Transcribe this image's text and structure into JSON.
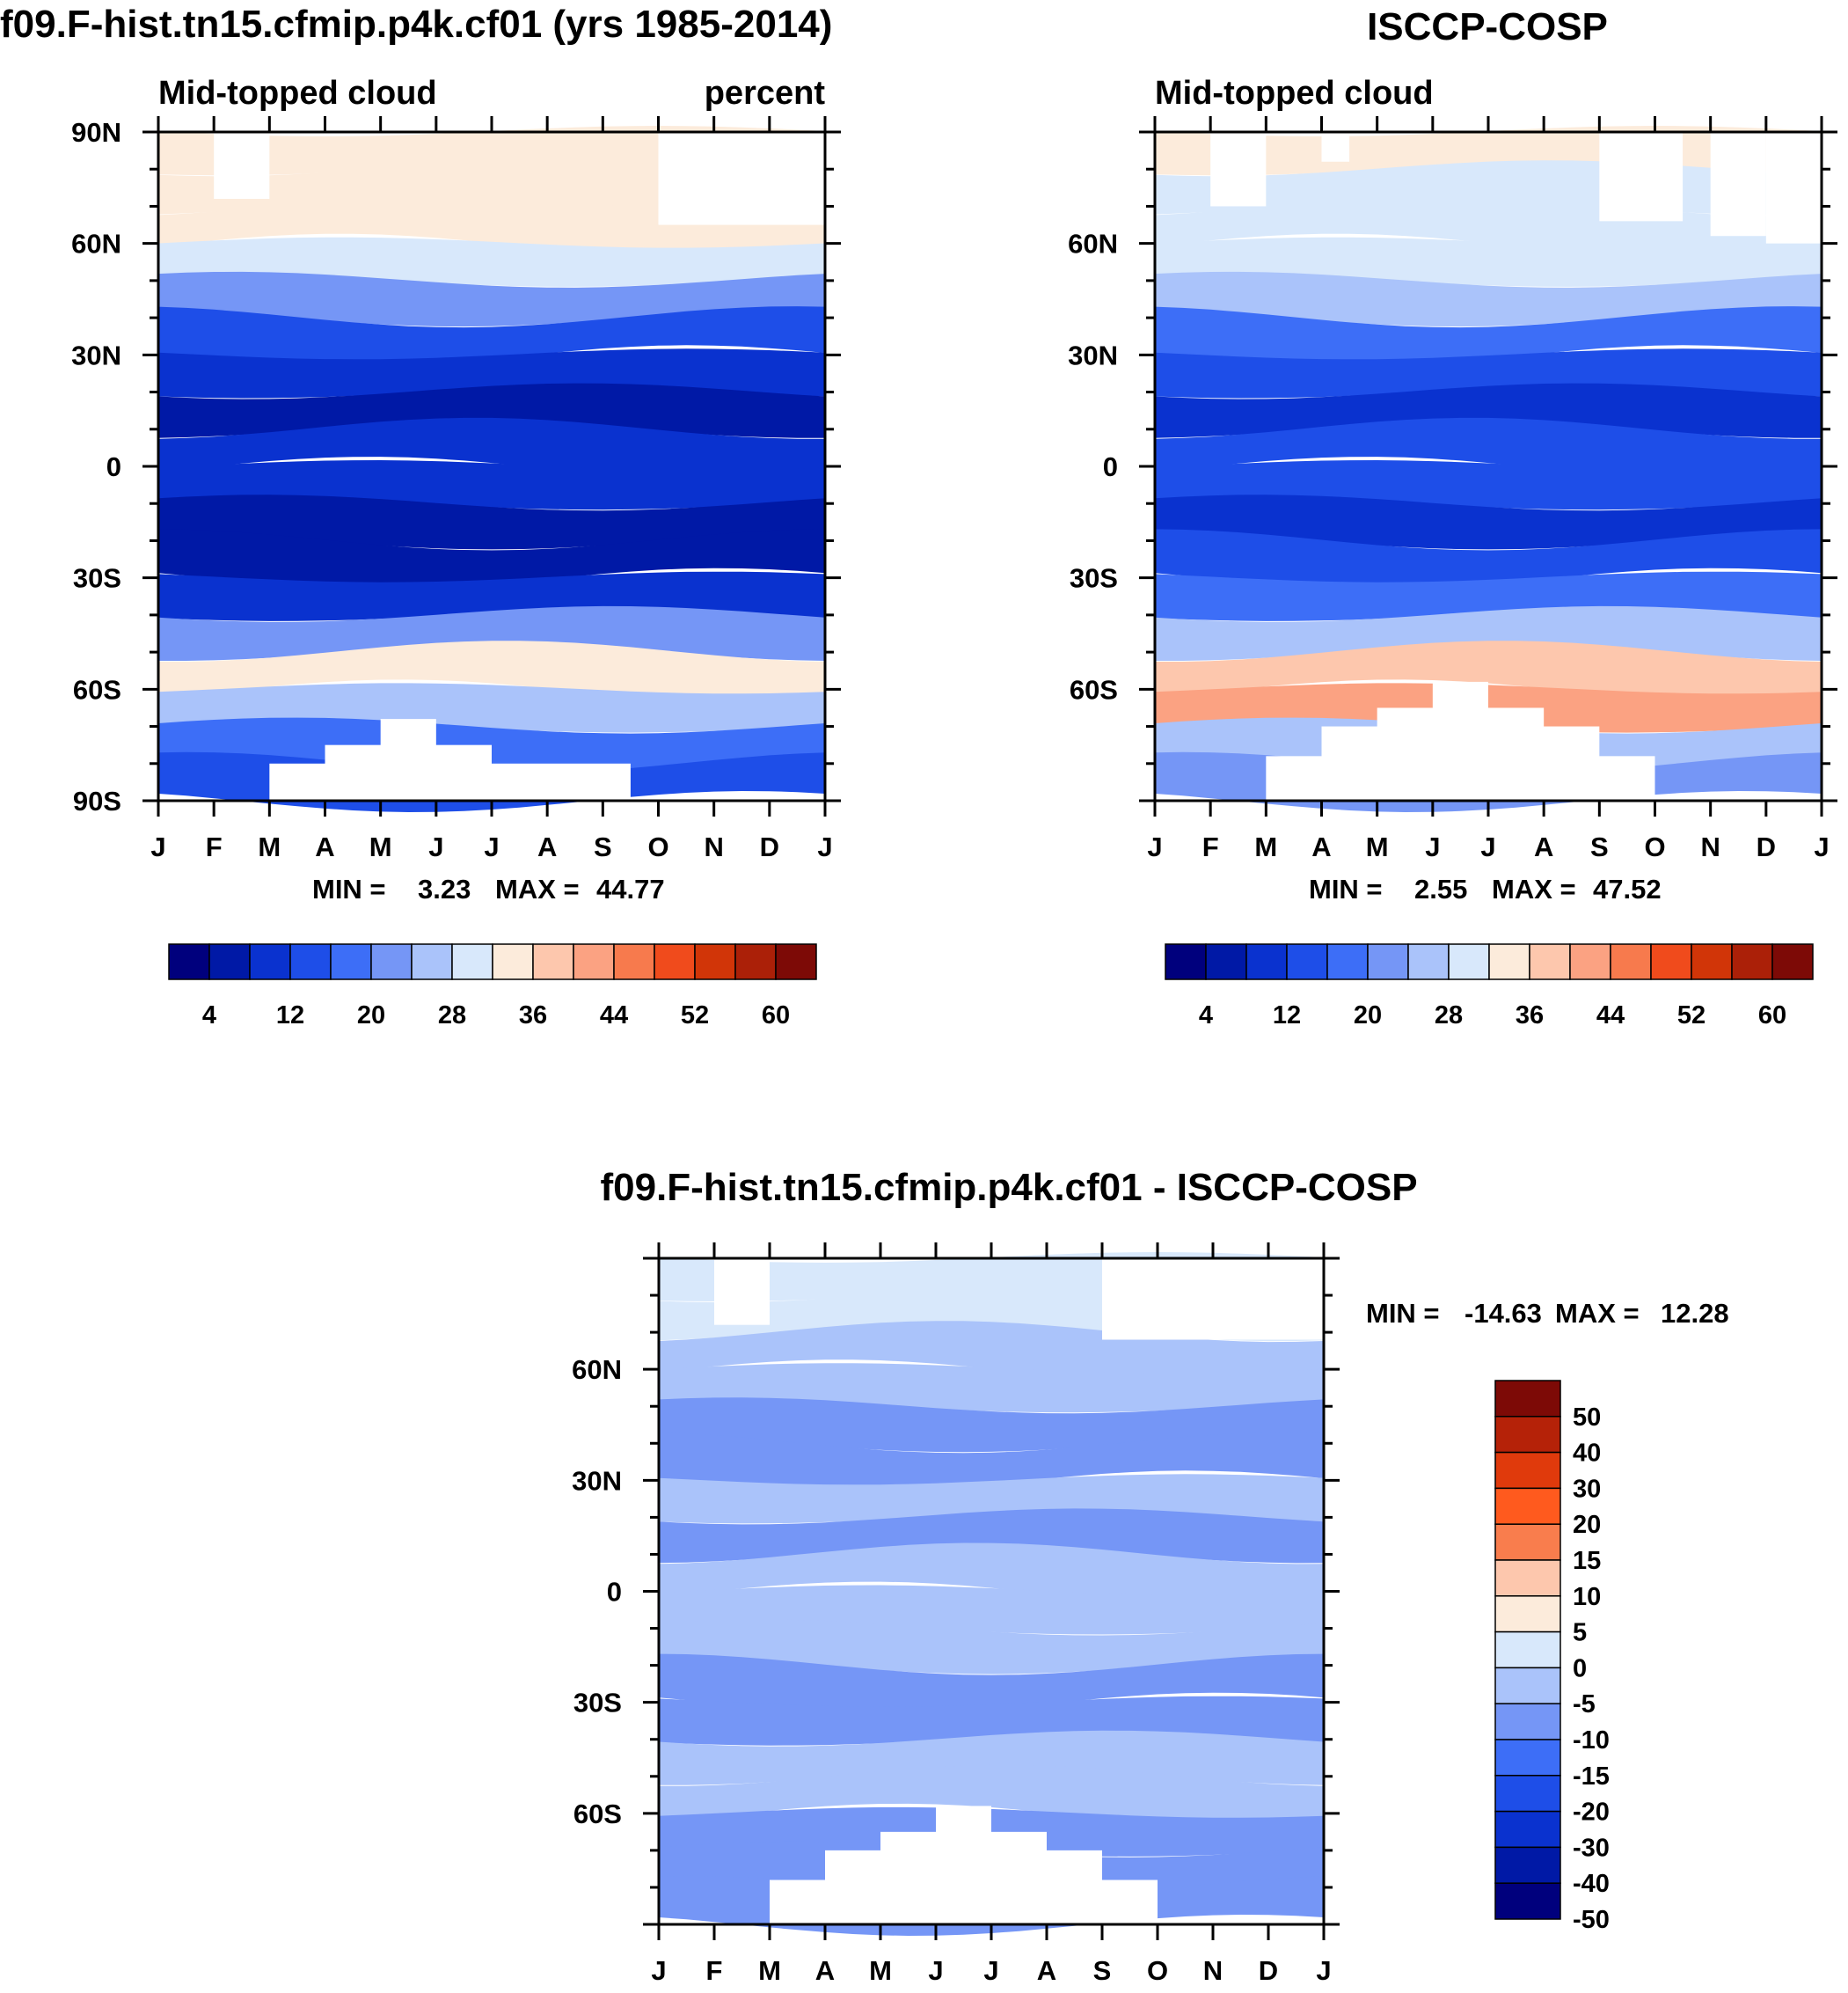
{
  "chart_data": [
    {
      "id": "model",
      "type": "heatmap",
      "title": "f09.F-hist.tn15.cfmip.p4k.cf01 (yrs 1985-2014)",
      "left_string": "Mid-topped cloud",
      "right_string": "percent",
      "xlabel": "",
      "ylabel": "",
      "x_ticks": [
        "J",
        "F",
        "M",
        "A",
        "M",
        "J",
        "J",
        "A",
        "S",
        "O",
        "N",
        "D",
        "J"
      ],
      "y_ticks": [
        "90N",
        "60N",
        "30N",
        "0",
        "30S",
        "60S",
        "90S"
      ],
      "y_tick_values": [
        90,
        60,
        30,
        0,
        -30,
        -60,
        -90
      ],
      "ylim": [
        -90,
        90
      ],
      "min_label": "MIN =",
      "min_value": "3.23",
      "max_label": "MAX =",
      "max_value": "44.77",
      "colorbar_labels": [
        "4",
        "12",
        "20",
        "28",
        "36",
        "44",
        "52",
        "60"
      ],
      "field_by_latitude": [
        {
          "lat": 85,
          "value": 33
        },
        {
          "lat": 75,
          "value": 33
        },
        {
          "lat": 65,
          "value": 34
        },
        {
          "lat": 55,
          "value": 30
        },
        {
          "lat": 45,
          "value": 22
        },
        {
          "lat": 35,
          "value": 14
        },
        {
          "lat": 25,
          "value": 8
        },
        {
          "lat": 15,
          "value": 6
        },
        {
          "lat": 5,
          "value": 9
        },
        {
          "lat": -5,
          "value": 10
        },
        {
          "lat": -15,
          "value": 6
        },
        {
          "lat": -25,
          "value": 6
        },
        {
          "lat": -35,
          "value": 10
        },
        {
          "lat": -45,
          "value": 22
        },
        {
          "lat": -55,
          "value": 32
        },
        {
          "lat": -65,
          "value": 26
        },
        {
          "lat": -75,
          "value": 18
        },
        {
          "lat": -85,
          "value": 14
        }
      ]
    },
    {
      "id": "obs",
      "type": "heatmap",
      "title": "ISCCP-COSP",
      "left_string": "Mid-topped cloud",
      "xlabel": "",
      "ylabel": "",
      "x_ticks": [
        "J",
        "F",
        "M",
        "A",
        "M",
        "J",
        "J",
        "A",
        "S",
        "O",
        "N",
        "D",
        "J"
      ],
      "y_ticks": [
        "60N",
        "30N",
        "0",
        "30S",
        "60S"
      ],
      "y_tick_values": [
        60,
        30,
        0,
        -30,
        -60
      ],
      "ylim": [
        -90,
        90
      ],
      "min_label": "MIN =",
      "min_value": "2.55",
      "max_label": "MAX =",
      "max_value": "47.52",
      "colorbar_labels": [
        "4",
        "12",
        "20",
        "28",
        "36",
        "44",
        "52",
        "60"
      ],
      "field_by_latitude": [
        {
          "lat": 85,
          "value": 32
        },
        {
          "lat": 75,
          "value": 28
        },
        {
          "lat": 65,
          "value": 30
        },
        {
          "lat": 55,
          "value": 30
        },
        {
          "lat": 45,
          "value": 24
        },
        {
          "lat": 35,
          "value": 18
        },
        {
          "lat": 25,
          "value": 12
        },
        {
          "lat": 15,
          "value": 10
        },
        {
          "lat": 5,
          "value": 14
        },
        {
          "lat": -5,
          "value": 12
        },
        {
          "lat": -15,
          "value": 10
        },
        {
          "lat": -25,
          "value": 12
        },
        {
          "lat": -35,
          "value": 16
        },
        {
          "lat": -45,
          "value": 26
        },
        {
          "lat": -55,
          "value": 36
        },
        {
          "lat": -65,
          "value": 40
        },
        {
          "lat": -75,
          "value": 26
        },
        {
          "lat": -85,
          "value": 22
        }
      ]
    },
    {
      "id": "diff",
      "type": "heatmap",
      "title": "f09.F-hist.tn15.cfmip.p4k.cf01 - ISCCP-COSP",
      "xlabel": "",
      "ylabel": "",
      "x_ticks": [
        "J",
        "F",
        "M",
        "A",
        "M",
        "J",
        "J",
        "A",
        "S",
        "O",
        "N",
        "D",
        "J"
      ],
      "y_ticks": [
        "60N",
        "30N",
        "0",
        "30S",
        "60S"
      ],
      "y_tick_values": [
        60,
        30,
        0,
        -30,
        -60
      ],
      "ylim": [
        -90,
        90
      ],
      "min_label": "MIN =",
      "min_value": "-14.63",
      "max_label": "MAX =",
      "max_value": "12.28",
      "colorbar_labels": [
        "50",
        "40",
        "30",
        "20",
        "15",
        "10",
        "5",
        "0",
        "-5",
        "-10",
        "-15",
        "-20",
        "-30",
        "-40",
        "-50"
      ],
      "field_by_latitude": [
        {
          "lat": 85,
          "value": 4
        },
        {
          "lat": 75,
          "value": 2
        },
        {
          "lat": 65,
          "value": -2
        },
        {
          "lat": 55,
          "value": -4
        },
        {
          "lat": 45,
          "value": -8
        },
        {
          "lat": 35,
          "value": -7
        },
        {
          "lat": 25,
          "value": -4
        },
        {
          "lat": 15,
          "value": -6
        },
        {
          "lat": 5,
          "value": -4
        },
        {
          "lat": -5,
          "value": -3
        },
        {
          "lat": -15,
          "value": -4
        },
        {
          "lat": -25,
          "value": -6
        },
        {
          "lat": -35,
          "value": -7
        },
        {
          "lat": -45,
          "value": -3
        },
        {
          "lat": -55,
          "value": -4
        },
        {
          "lat": -65,
          "value": -9
        },
        {
          "lat": -75,
          "value": -8
        },
        {
          "lat": -85,
          "value": -6
        }
      ]
    }
  ],
  "palettes": {
    "seq": [
      "#00007d",
      "#0019a6",
      "#0a32cf",
      "#1e4ee8",
      "#3d6ef7",
      "#7596f6",
      "#aac3fa",
      "#d8e8fb",
      "#fcebdb",
      "#fdc7ad",
      "#fba282",
      "#f77a4d",
      "#f04b1c",
      "#d13508",
      "#ab2008",
      "#7d0a06"
    ],
    "div": [
      "#7d0a06",
      "#b52208",
      "#e03a0c",
      "#ff5a1e",
      "#f97d4d",
      "#fdc7ad",
      "#fcebdb",
      "#d8e8fb",
      "#aac3fa",
      "#7596f6",
      "#3d6ef7",
      "#1e4ee8",
      "#0a32cf",
      "#0019a6",
      "#00007d"
    ]
  }
}
